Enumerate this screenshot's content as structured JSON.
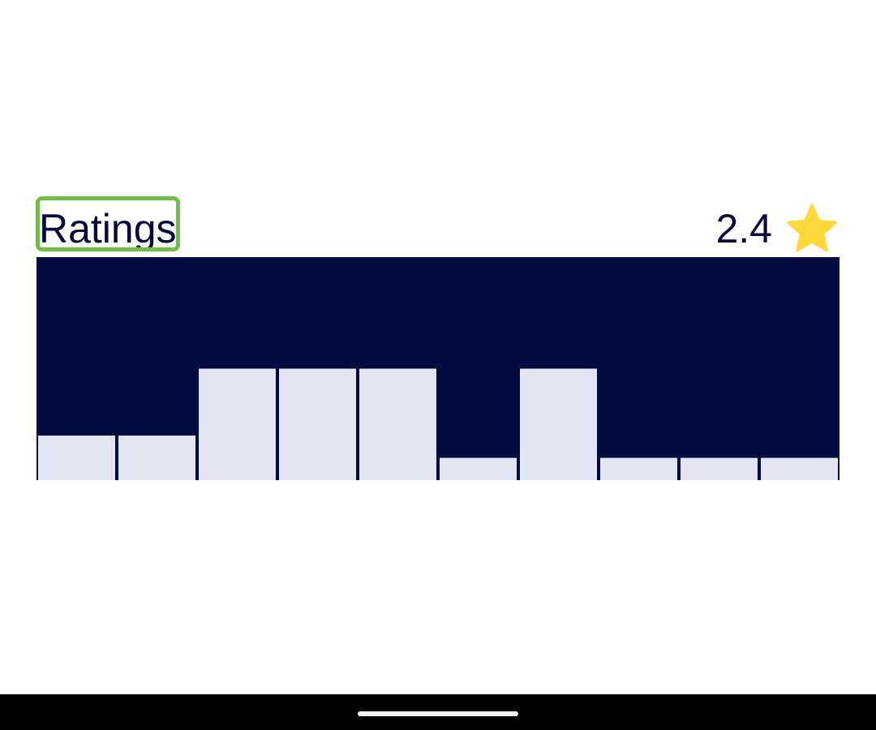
{
  "ratings_section": {
    "title": "Ratings",
    "average": "2.4",
    "star_icon": "star-icon"
  },
  "chart_data": {
    "type": "bar",
    "values": [
      2,
      2,
      5,
      5,
      5,
      1,
      5,
      1,
      1,
      1
    ],
    "ylim": [
      0,
      10
    ],
    "grid": false,
    "colors": {
      "background": "#030b40",
      "bar": "#e3e6f2"
    }
  },
  "colors": {
    "text": "#050c3a",
    "highlight": "#6fbe45",
    "star": "#fcd839",
    "nav_bar": "#000000"
  }
}
